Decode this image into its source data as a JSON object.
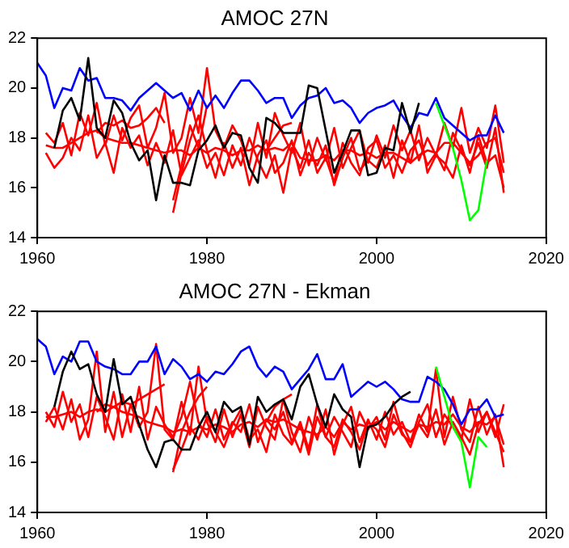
{
  "chart_data": [
    {
      "type": "line",
      "title": "AMOC 27N",
      "x": [
        1960,
        1961,
        1962,
        1963,
        1964,
        1965,
        1966,
        1967,
        1968,
        1969,
        1970,
        1971,
        1972,
        1973,
        1974,
        1975,
        1976,
        1977,
        1978,
        1979,
        1980,
        1981,
        1982,
        1983,
        1984,
        1985,
        1986,
        1987,
        1988,
        1989,
        1990,
        1991,
        1992,
        1993,
        1994,
        1995,
        1996,
        1997,
        1998,
        1999,
        2000,
        2001,
        2002,
        2003,
        2004,
        2005,
        2006,
        2007,
        2008,
        2009,
        2010,
        2011,
        2012,
        2013,
        2014,
        2015
      ],
      "xlim": [
        1960,
        2020
      ],
      "xticks": [
        1960,
        1980,
        2000,
        2020
      ],
      "ylim": [
        14,
        22
      ],
      "yticks": [
        14,
        16,
        18,
        20,
        22
      ],
      "grid": false,
      "legend": false,
      "series": [
        {
          "color": "#ff0000",
          "values": [
            null,
            17.4,
            16.8,
            17.2,
            18.0,
            17.5,
            18.9,
            17.2,
            17.8,
            16.6,
            18.4,
            17.6,
            18.1,
            16.9,
            17.8,
            17.0,
            18.3,
            16.5,
            17.2,
            17.9,
            16.8,
            17.4,
            16.5,
            17.7,
            16.9,
            18.0,
            17.1,
            16.4,
            17.3,
            15.8,
            17.6,
            16.8,
            17.9,
            16.6,
            17.2,
            16.2,
            17.8,
            17.0,
            16.5,
            17.6,
            17.9,
            16.8,
            17.3,
            16.6,
            17.5,
            17.9,
            16.9,
            17.4,
            16.7,
            18.2,
            17.5,
            16.9,
            17.8,
            16.8,
            18.4,
            15.8
          ]
        },
        {
          "color": "#ff0000",
          "values": [
            null,
            18.2,
            17.8,
            18.6,
            17.3,
            19.0,
            18.1,
            19.4,
            17.7,
            18.9,
            17.9,
            18.8,
            19.3,
            17.6,
            18.4,
            19.8,
            17.4,
            18.0,
            19.6,
            18.2,
            20.8,
            18.3,
            17.6,
            18.5,
            17.9,
            16.9,
            18.6,
            17.2,
            19.0,
            18.1,
            17.4,
            18.6,
            16.9,
            18.0,
            17.1,
            18.4,
            16.8,
            17.6,
            18.3,
            17.0,
            18.1,
            17.2,
            18.5,
            17.5,
            18.3,
            17.1,
            18.0,
            17.3,
            18.6,
            17.6,
            19.2,
            17.4,
            18.4,
            17.6,
            19.3,
            17.0
          ]
        },
        {
          "color": "#ff0000",
          "values": [
            null,
            null,
            null,
            null,
            null,
            null,
            null,
            null,
            null,
            null,
            null,
            null,
            null,
            null,
            null,
            null,
            15.0,
            16.6,
            17.9,
            18.9,
            17.5,
            16.4,
            17.8,
            16.8,
            17.6,
            16.1,
            17.3,
            17.9,
            16.6,
            17.0,
            17.9,
            16.5,
            17.4,
            16.9,
            17.7,
            16.1,
            17.2,
            18.0,
            16.7,
            17.1,
            16.8,
            17.7,
            16.4,
            17.9,
            17.0,
            18.5,
            16.6,
            17.3,
            17.0,
            16.4,
            17.7,
            16.6,
            18.1,
            17.0,
            17.3,
            16.0
          ]
        },
        {
          "color": "#ff0000",
          "values": [
            null,
            17.7,
            17.6,
            17.6,
            17.8,
            18.0,
            18.2,
            18.3,
            18.0,
            17.9,
            17.8,
            17.8,
            17.7,
            17.6,
            17.5,
            17.4,
            17.5,
            17.5,
            17.3,
            17.6,
            17.4,
            17.6,
            17.5,
            17.3,
            17.5,
            17.5,
            17.7,
            17.5,
            17.6,
            17.5,
            17.8,
            17.2,
            17.1,
            17.1,
            17.3,
            17.1,
            17.5,
            17.5,
            17.3,
            17.4,
            17.2,
            17.4,
            17.4,
            17.2,
            17.0,
            17.3,
            17.5,
            17.4,
            17.8,
            17.8,
            17.4,
            17.0,
            17.3,
            17.8,
            18.0,
            16.6
          ]
        },
        {
          "color": "#ff0000",
          "values": [
            null,
            null,
            null,
            null,
            null,
            null,
            null,
            18.2,
            18.6,
            18.5,
            18.7,
            18.4,
            18.5,
            18.8,
            19.2,
            18.6,
            null,
            null,
            null,
            null,
            null,
            null,
            null,
            null,
            null,
            null,
            null,
            null,
            null,
            null,
            null,
            null,
            null,
            null,
            null,
            null,
            null,
            null,
            null,
            null,
            null,
            null,
            null,
            null,
            null,
            null,
            null,
            null,
            null,
            null,
            null,
            null,
            null,
            null,
            null,
            null
          ]
        },
        {
          "color": "#ff0000",
          "values": [
            null,
            null,
            null,
            null,
            null,
            null,
            null,
            null,
            null,
            null,
            null,
            null,
            null,
            null,
            null,
            null,
            15.5,
            16.9,
            18.5,
            17.6,
            19.3,
            null,
            null,
            null,
            null,
            null,
            null,
            17.5,
            18.0,
            18.5,
            18.6,
            null,
            null,
            null,
            null,
            null,
            null,
            null,
            null,
            null,
            null,
            null,
            null,
            null,
            null,
            null,
            null,
            null,
            null,
            null,
            null,
            null,
            null,
            null,
            null,
            null
          ]
        },
        {
          "color": "#0000ff",
          "values": [
            21.0,
            20.5,
            19.2,
            20.0,
            19.9,
            20.8,
            20.3,
            20.4,
            19.6,
            19.6,
            19.5,
            19.1,
            19.6,
            19.9,
            20.2,
            19.9,
            19.6,
            19.8,
            19.1,
            19.9,
            19.2,
            19.7,
            19.2,
            19.8,
            20.3,
            20.3,
            19.9,
            19.4,
            19.6,
            19.6,
            18.8,
            19.3,
            19.6,
            19.7,
            20.0,
            19.4,
            19.5,
            19.2,
            18.6,
            19.0,
            19.2,
            19.3,
            19.5,
            18.9,
            18.4,
            19.0,
            18.9,
            19.6,
            18.8,
            18.5,
            18.2,
            17.9,
            18.1,
            18.1,
            18.9,
            18.2
          ]
        },
        {
          "color": "#000000",
          "values": [
            null,
            null,
            17.6,
            19.1,
            19.6,
            18.7,
            21.2,
            18.4,
            18.0,
            19.5,
            19.0,
            17.8,
            17.1,
            17.5,
            15.5,
            17.3,
            16.2,
            16.2,
            16.1,
            17.5,
            17.9,
            18.5,
            17.6,
            18.2,
            18.1,
            16.8,
            16.2,
            18.8,
            18.6,
            18.2,
            18.2,
            18.2,
            20.1,
            20.0,
            18.3,
            16.6,
            17.4,
            18.3,
            18.3,
            16.5,
            16.6,
            17.6,
            17.5,
            19.4,
            18.2,
            19.4,
            null,
            null,
            null,
            null,
            null,
            null,
            null,
            null,
            null,
            null
          ]
        },
        {
          "color": "#00ff00",
          "values": [
            null,
            null,
            null,
            null,
            null,
            null,
            null,
            null,
            null,
            null,
            null,
            null,
            null,
            null,
            null,
            null,
            null,
            null,
            null,
            null,
            null,
            null,
            null,
            null,
            null,
            null,
            null,
            null,
            null,
            null,
            null,
            null,
            null,
            null,
            null,
            null,
            null,
            null,
            null,
            null,
            null,
            null,
            null,
            null,
            null,
            null,
            null,
            19.4,
            18.5,
            17.6,
            16.3,
            14.7,
            15.1,
            17.1,
            null,
            null
          ]
        }
      ]
    },
    {
      "type": "line",
      "title": "AMOC 27N - Ekman",
      "x": [
        1960,
        1961,
        1962,
        1963,
        1964,
        1965,
        1966,
        1967,
        1968,
        1969,
        1970,
        1971,
        1972,
        1973,
        1974,
        1975,
        1976,
        1977,
        1978,
        1979,
        1980,
        1981,
        1982,
        1983,
        1984,
        1985,
        1986,
        1987,
        1988,
        1989,
        1990,
        1991,
        1992,
        1993,
        1994,
        1995,
        1996,
        1997,
        1998,
        1999,
        2000,
        2001,
        2002,
        2003,
        2004,
        2005,
        2006,
        2007,
        2008,
        2009,
        2010,
        2011,
        2012,
        2013,
        2014,
        2015
      ],
      "xlim": [
        1960,
        2020
      ],
      "xticks": [
        1960,
        1980,
        2000,
        2020
      ],
      "ylim": [
        14,
        22
      ],
      "yticks": [
        14,
        16,
        18,
        20,
        22
      ],
      "grid": false,
      "legend": false,
      "series": [
        {
          "color": "#ff0000",
          "values": [
            null,
            17.6,
            18.2,
            17.3,
            18.5,
            16.9,
            17.7,
            20.4,
            17.2,
            18.8,
            17.0,
            18.3,
            17.4,
            18.0,
            20.7,
            17.3,
            16.9,
            18.4,
            17.1,
            19.8,
            17.6,
            16.8,
            18.1,
            17.0,
            17.9,
            16.6,
            18.2,
            17.4,
            16.9,
            18.5,
            17.2,
            16.4,
            17.8,
            16.9,
            18.1,
            16.3,
            17.5,
            18.2,
            16.8,
            17.7,
            16.9,
            18.0,
            17.1,
            17.6,
            16.8,
            17.9,
            17.2,
            19.7,
            17.0,
            18.6,
            17.3,
            16.8,
            18.2,
            17.1,
            17.9,
            15.8
          ]
        },
        {
          "color": "#ff0000",
          "values": [
            null,
            18.0,
            17.4,
            18.8,
            17.6,
            18.3,
            17.0,
            18.6,
            17.8,
            16.9,
            18.7,
            17.2,
            19.0,
            16.9,
            18.2,
            17.5,
            17.0,
            17.8,
            19.2,
            17.6,
            17.0,
            18.1,
            16.9,
            17.6,
            17.2,
            18.3,
            16.8,
            17.7,
            17.3,
            18.0,
            16.8,
            17.6,
            16.5,
            18.3,
            17.0,
            17.8,
            17.2,
            16.6,
            18.0,
            17.3,
            17.8,
            16.9,
            18.4,
            17.2,
            16.6,
            17.6,
            18.3,
            17.0,
            17.9,
            17.4,
            16.9,
            18.5,
            17.2,
            18.0,
            17.0,
            18.3
          ]
        },
        {
          "color": "#ff0000",
          "values": [
            null,
            null,
            null,
            null,
            null,
            null,
            null,
            null,
            null,
            null,
            null,
            null,
            null,
            null,
            null,
            null,
            15.7,
            16.5,
            17.4,
            16.9,
            17.8,
            17.2,
            16.6,
            17.5,
            18.1,
            16.9,
            17.3,
            16.4,
            17.9,
            17.1,
            16.7,
            17.5,
            16.3,
            17.8,
            17.0,
            16.6,
            17.7,
            17.2,
            16.5,
            17.6,
            17.3,
            16.6,
            17.9,
            17.1,
            16.8,
            17.5,
            17.0,
            18.1,
            16.7,
            17.6,
            17.0,
            16.3,
            17.5,
            18.0,
            17.2,
            16.4
          ]
        },
        {
          "color": "#ff0000",
          "values": [
            null,
            17.8,
            17.8,
            17.9,
            18.0,
            17.8,
            18.0,
            18.1,
            18.0,
            18.2,
            18.0,
            17.9,
            17.8,
            17.6,
            17.5,
            17.4,
            17.2,
            17.3,
            17.2,
            17.4,
            17.3,
            17.5,
            17.4,
            17.2,
            17.5,
            17.6,
            17.4,
            17.7,
            17.6,
            17.7,
            17.5,
            17.3,
            17.2,
            17.1,
            17.4,
            17.0,
            17.6,
            17.3,
            17.5,
            17.4,
            17.6,
            17.3,
            17.6,
            17.4,
            17.2,
            17.5,
            17.4,
            17.6,
            17.5,
            17.9,
            17.4,
            17.2,
            17.6,
            17.5,
            17.8,
            16.7
          ]
        },
        {
          "color": "#ff0000",
          "values": [
            null,
            null,
            null,
            null,
            null,
            null,
            null,
            18.0,
            18.3,
            18.2,
            18.4,
            18.3,
            18.5,
            18.7,
            18.9,
            19.1,
            null,
            null,
            null,
            null,
            null,
            null,
            null,
            null,
            null,
            null,
            null,
            null,
            null,
            null,
            null,
            null,
            null,
            null,
            null,
            null,
            null,
            null,
            null,
            null,
            null,
            null,
            null,
            null,
            null,
            null,
            null,
            null,
            null,
            null,
            null,
            null,
            null,
            null,
            null,
            null
          ]
        },
        {
          "color": "#ff0000",
          "values": [
            null,
            null,
            null,
            null,
            null,
            null,
            null,
            null,
            null,
            null,
            null,
            null,
            null,
            null,
            null,
            null,
            15.6,
            17.2,
            18.0,
            18.6,
            19.0,
            null,
            null,
            null,
            null,
            null,
            null,
            17.6,
            18.2,
            18.5,
            18.7,
            null,
            null,
            null,
            null,
            null,
            null,
            null,
            null,
            null,
            null,
            null,
            null,
            null,
            null,
            null,
            null,
            null,
            null,
            null,
            null,
            null,
            null,
            null,
            null,
            null
          ]
        },
        {
          "color": "#0000ff",
          "values": [
            20.9,
            20.6,
            19.5,
            20.2,
            20.0,
            20.8,
            20.8,
            20.0,
            19.8,
            19.7,
            19.5,
            19.5,
            20.0,
            20.0,
            20.6,
            19.5,
            20.1,
            19.8,
            19.3,
            19.5,
            19.2,
            19.6,
            19.5,
            19.9,
            20.4,
            20.6,
            19.8,
            19.4,
            19.8,
            19.6,
            18.9,
            19.3,
            19.7,
            20.3,
            19.3,
            19.3,
            19.9,
            18.6,
            18.9,
            19.2,
            19.0,
            19.2,
            18.9,
            18.5,
            18.4,
            18.4,
            19.4,
            19.2,
            18.9,
            18.3,
            17.5,
            18.1,
            18.1,
            18.5,
            17.8,
            17.9
          ]
        },
        {
          "color": "#000000",
          "values": [
            null,
            null,
            18.2,
            19.6,
            20.4,
            19.7,
            19.9,
            18.7,
            18.0,
            20.1,
            18.3,
            18.6,
            17.5,
            16.5,
            15.8,
            16.8,
            16.9,
            16.5,
            16.5,
            17.4,
            18.0,
            17.2,
            18.4,
            18.0,
            18.2,
            16.7,
            18.6,
            18.0,
            18.3,
            18.5,
            17.7,
            19.0,
            19.5,
            18.3,
            17.4,
            18.7,
            18.1,
            17.8,
            15.8,
            17.4,
            17.5,
            17.8,
            18.3,
            18.6,
            18.8,
            null,
            null,
            null,
            null,
            null,
            null,
            null,
            null,
            null,
            null,
            null
          ]
        },
        {
          "color": "#00ff00",
          "values": [
            null,
            null,
            null,
            null,
            null,
            null,
            null,
            null,
            null,
            null,
            null,
            null,
            null,
            null,
            null,
            null,
            null,
            null,
            null,
            null,
            null,
            null,
            null,
            null,
            null,
            null,
            null,
            null,
            null,
            null,
            null,
            null,
            null,
            null,
            null,
            null,
            null,
            null,
            null,
            null,
            null,
            null,
            null,
            null,
            null,
            null,
            null,
            19.8,
            18.6,
            17.4,
            16.8,
            15.0,
            17.0,
            16.6,
            null,
            null
          ]
        }
      ]
    }
  ]
}
